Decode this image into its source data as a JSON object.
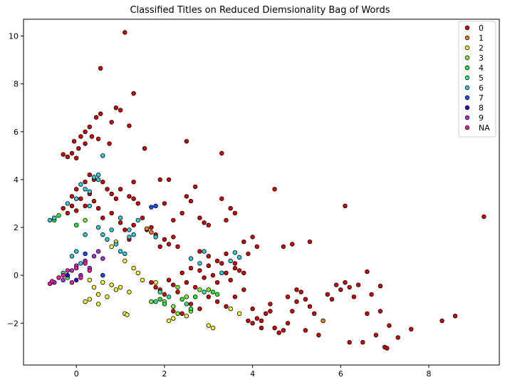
{
  "chart_data": {
    "type": "scatter",
    "title": "Classified Titles on Reduced Diemsionality Bag of Words",
    "xlabel": "",
    "ylabel": "",
    "xlim": [
      -1.2,
      9.6
    ],
    "ylim": [
      -3.75,
      10.7
    ],
    "xticks": [
      0,
      2,
      4,
      6,
      8
    ],
    "yticks": [
      -2,
      0,
      2,
      4,
      6,
      8,
      10
    ],
    "grid": false,
    "legend_position": "top-right",
    "series": [
      {
        "name": "0",
        "color": "#d40000",
        "points": [
          [
            1.1,
            10.15
          ],
          [
            0.55,
            8.65
          ],
          [
            1.3,
            7.6
          ],
          [
            0.9,
            7.0
          ],
          [
            1.0,
            6.9
          ],
          [
            0.55,
            6.75
          ],
          [
            1.2,
            6.25
          ],
          [
            0.45,
            6.6
          ],
          [
            0.3,
            6.2
          ],
          [
            0.2,
            6.0
          ],
          [
            0.1,
            5.8
          ],
          [
            -0.05,
            5.6
          ],
          [
            -0.3,
            5.05
          ],
          [
            -0.2,
            4.95
          ],
          [
            -0.1,
            5.1
          ],
          [
            0.0,
            4.9
          ],
          [
            0.05,
            5.3
          ],
          [
            0.2,
            5.5
          ],
          [
            0.35,
            5.8
          ],
          [
            0.5,
            5.7
          ],
          [
            0.8,
            6.4
          ],
          [
            0.75,
            5.5
          ],
          [
            1.55,
            5.3
          ],
          [
            2.5,
            5.6
          ],
          [
            0.3,
            4.2
          ],
          [
            0.2,
            3.9
          ],
          [
            0.4,
            4.0
          ],
          [
            0.6,
            3.9
          ],
          [
            0.7,
            3.6
          ],
          [
            0.8,
            3.4
          ],
          [
            0.9,
            3.2
          ],
          [
            1.0,
            3.6
          ],
          [
            1.2,
            3.3
          ],
          [
            1.4,
            3.0
          ],
          [
            0.0,
            3.6
          ],
          [
            -0.1,
            3.3
          ],
          [
            0.1,
            3.2
          ],
          [
            0.3,
            3.4
          ],
          [
            -0.3,
            2.8
          ],
          [
            -0.2,
            2.6
          ],
          [
            -0.1,
            2.9
          ],
          [
            0.0,
            2.7
          ],
          [
            0.2,
            2.9
          ],
          [
            0.4,
            3.1
          ],
          [
            0.5,
            2.8
          ],
          [
            0.6,
            2.4
          ],
          [
            0.8,
            2.6
          ],
          [
            1.0,
            2.2
          ],
          [
            1.1,
            1.9
          ],
          [
            1.2,
            1.5
          ],
          [
            1.3,
            2.1
          ],
          [
            1.5,
            2.4
          ],
          [
            1.6,
            1.9
          ],
          [
            1.7,
            2.0
          ],
          [
            1.8,
            1.7
          ],
          [
            1.9,
            1.2
          ],
          [
            2.0,
            1.5
          ],
          [
            2.1,
            1.3
          ],
          [
            2.2,
            1.6
          ],
          [
            2.3,
            1.2
          ],
          [
            2.2,
            2.3
          ],
          [
            2.4,
            2.6
          ],
          [
            2.6,
            3.1
          ],
          [
            2.7,
            3.7
          ],
          [
            2.8,
            2.4
          ],
          [
            3.0,
            2.1
          ],
          [
            3.3,
            3.2
          ],
          [
            3.5,
            2.8
          ],
          [
            3.3,
            5.1
          ],
          [
            1.3,
            3.9
          ],
          [
            1.3,
            3.2
          ],
          [
            1.9,
            4.0
          ],
          [
            2.0,
            3.0
          ],
          [
            2.1,
            4.0
          ],
          [
            2.5,
            3.3
          ],
          [
            3.4,
            2.3
          ],
          [
            3.6,
            2.6
          ],
          [
            2.9,
            2.2
          ],
          [
            2.8,
            1.0
          ],
          [
            3.0,
            0.8
          ],
          [
            3.2,
            0.6
          ],
          [
            3.4,
            0.9
          ],
          [
            3.6,
            0.5
          ],
          [
            3.8,
            1.4
          ],
          [
            3.9,
            0.9
          ],
          [
            4.0,
            1.6
          ],
          [
            4.1,
            1.2
          ],
          [
            4.5,
            3.6
          ],
          [
            4.7,
            1.2
          ],
          [
            4.9,
            1.3
          ],
          [
            5.3,
            1.4
          ],
          [
            6.1,
            2.9
          ],
          [
            9.25,
            2.45
          ],
          [
            1.7,
            -0.3
          ],
          [
            1.8,
            -0.5
          ],
          [
            1.9,
            -0.6
          ],
          [
            2.0,
            -0.8
          ],
          [
            2.1,
            -0.2
          ],
          [
            2.2,
            -0.4
          ],
          [
            2.3,
            -0.7
          ],
          [
            2.4,
            0.1
          ],
          [
            2.5,
            -0.3
          ],
          [
            2.6,
            0.3
          ],
          [
            2.7,
            -0.5
          ],
          [
            2.8,
            0.2
          ],
          [
            2.9,
            -0.1
          ],
          [
            3.0,
            0.4
          ],
          [
            3.1,
            0.0
          ],
          [
            3.2,
            -0.3
          ],
          [
            3.3,
            0.5
          ],
          [
            3.4,
            0.1
          ],
          [
            3.5,
            -0.2
          ],
          [
            3.6,
            0.3
          ],
          [
            3.7,
            0.2
          ],
          [
            3.8,
            0.1
          ],
          [
            2.2,
            -1.5
          ],
          [
            2.4,
            -1.6
          ],
          [
            2.6,
            -1.2
          ],
          [
            2.8,
            -1.4
          ],
          [
            3.0,
            -0.9
          ],
          [
            3.2,
            -1.1
          ],
          [
            3.4,
            -1.3
          ],
          [
            3.6,
            -0.9
          ],
          [
            3.9,
            -1.9
          ],
          [
            4.0,
            -2.0
          ],
          [
            4.1,
            -1.8
          ],
          [
            4.2,
            -1.9
          ],
          [
            4.3,
            -1.6
          ],
          [
            4.4,
            -1.5
          ],
          [
            4.5,
            -2.2
          ],
          [
            4.6,
            -2.4
          ],
          [
            4.7,
            -2.3
          ],
          [
            4.8,
            -2.0
          ],
          [
            4.9,
            -1.5
          ],
          [
            5.0,
            -1.1
          ],
          [
            5.1,
            -0.7
          ],
          [
            5.2,
            -1.0
          ],
          [
            5.3,
            -1.3
          ],
          [
            5.4,
            -1.6
          ],
          [
            5.5,
            -2.5
          ],
          [
            5.6,
            -1.9
          ],
          [
            5.7,
            -0.8
          ],
          [
            5.8,
            -1.0
          ],
          [
            5.9,
            -0.4
          ],
          [
            6.0,
            -0.6
          ],
          [
            6.1,
            -0.3
          ],
          [
            6.2,
            -0.5
          ],
          [
            6.3,
            -0.9
          ],
          [
            6.4,
            -0.4
          ],
          [
            6.5,
            -2.8
          ],
          [
            6.6,
            -1.6
          ],
          [
            6.7,
            -0.8
          ],
          [
            6.8,
            -2.5
          ],
          [
            6.9,
            -1.5
          ],
          [
            7.0,
            -3.0
          ],
          [
            7.05,
            -3.05
          ],
          [
            7.1,
            -2.1
          ],
          [
            7.3,
            -2.6
          ],
          [
            7.6,
            -2.25
          ],
          [
            8.3,
            -1.9
          ],
          [
            8.6,
            -1.7
          ],
          [
            6.9,
            -0.45
          ],
          [
            6.6,
            0.15
          ],
          [
            6.2,
            -2.8
          ],
          [
            5.0,
            -0.6
          ],
          [
            4.8,
            -0.9
          ],
          [
            5.2,
            -2.3
          ],
          [
            4.4,
            -1.2
          ],
          [
            4.2,
            -2.2
          ],
          [
            4.0,
            -1.4
          ],
          [
            3.8,
            -0.6
          ]
        ]
      },
      {
        "name": "1",
        "color": "#ff7f0e",
        "points": [
          [
            1.6,
            1.95
          ],
          [
            5.6,
            -1.9
          ],
          [
            1.7,
            1.8
          ]
        ]
      },
      {
        "name": "2",
        "color": "#ffff33",
        "points": [
          [
            0.3,
            -0.2
          ],
          [
            0.4,
            -0.5
          ],
          [
            0.5,
            -0.8
          ],
          [
            0.6,
            -0.3
          ],
          [
            0.7,
            -0.9
          ],
          [
            0.8,
            -0.4
          ],
          [
            0.9,
            -0.6
          ],
          [
            1.0,
            -0.5
          ],
          [
            1.1,
            0.6
          ],
          [
            1.2,
            -0.7
          ],
          [
            1.3,
            0.3
          ],
          [
            1.4,
            0.1
          ],
          [
            1.5,
            -0.2
          ],
          [
            1.8,
            -0.3
          ],
          [
            2.1,
            -1.9
          ],
          [
            2.2,
            -1.8
          ],
          [
            2.5,
            -1.7
          ],
          [
            3.0,
            -2.1
          ],
          [
            3.1,
            -2.2
          ],
          [
            3.5,
            -1.4
          ],
          [
            3.7,
            -1.6
          ],
          [
            0.2,
            -1.1
          ],
          [
            0.3,
            -1.0
          ],
          [
            0.5,
            -1.2
          ],
          [
            1.1,
            -1.6
          ],
          [
            1.15,
            -1.65
          ],
          [
            0.8,
            1.2
          ],
          [
            0.9,
            1.4
          ]
        ]
      },
      {
        "name": "3",
        "color": "#80ff33",
        "points": [
          [
            1.7,
            -1.1
          ],
          [
            2.2,
            -1.3
          ],
          [
            2.3,
            -1.6
          ],
          [
            2.5,
            -0.9
          ],
          [
            2.6,
            -1.5
          ],
          [
            2.0,
            -1.1
          ],
          [
            2.3,
            -0.5
          ],
          [
            2.8,
            -0.6
          ],
          [
            3.0,
            -0.6
          ],
          [
            -0.5,
            2.4
          ],
          [
            0.2,
            2.3
          ]
        ]
      },
      {
        "name": "4",
        "color": "#1aff33",
        "points": [
          [
            1.9,
            -1.0
          ],
          [
            2.0,
            -1.2
          ],
          [
            2.4,
            -1.0
          ],
          [
            2.6,
            -1.4
          ],
          [
            2.7,
            -0.9
          ],
          [
            3.1,
            -0.7
          ],
          [
            3.2,
            -0.8
          ],
          [
            -0.5,
            2.3
          ],
          [
            -0.4,
            2.5
          ],
          [
            0.0,
            2.1
          ]
        ]
      },
      {
        "name": "5",
        "color": "#1aff99",
        "points": [
          [
            1.8,
            -1.1
          ],
          [
            2.1,
            -0.9
          ],
          [
            2.5,
            -1.2
          ],
          [
            2.9,
            -0.7
          ],
          [
            1.9,
            -0.7
          ],
          [
            -0.3,
            0.1
          ],
          [
            -0.2,
            -0.1
          ]
        ]
      },
      {
        "name": "6",
        "color": "#33ccdd",
        "points": [
          [
            0.1,
            3.8
          ],
          [
            0.3,
            3.5
          ],
          [
            0.5,
            4.0
          ],
          [
            0.6,
            5.0
          ],
          [
            0.4,
            4.1
          ],
          [
            0.5,
            4.2
          ],
          [
            0.2,
            3.6
          ],
          [
            0.0,
            3.2
          ],
          [
            -0.2,
            3.0
          ],
          [
            0.3,
            2.9
          ],
          [
            0.5,
            2.0
          ],
          [
            0.6,
            1.7
          ],
          [
            0.7,
            1.5
          ],
          [
            0.8,
            1.9
          ],
          [
            0.9,
            1.3
          ],
          [
            1.0,
            1.0
          ],
          [
            1.1,
            0.9
          ],
          [
            1.2,
            1.6
          ],
          [
            1.3,
            1.7
          ],
          [
            1.4,
            2.3
          ],
          [
            1.0,
            2.4
          ],
          [
            1.2,
            1.9
          ],
          [
            0.2,
            1.7
          ],
          [
            0.0,
            1.0
          ],
          [
            -0.1,
            0.8
          ],
          [
            0.1,
            0.5
          ],
          [
            -0.6,
            2.3
          ],
          [
            -0.5,
            2.4
          ],
          [
            1.8,
            1.6
          ],
          [
            3.6,
            0.95
          ],
          [
            3.5,
            0.6
          ],
          [
            3.3,
            0.1
          ],
          [
            3.7,
            0.75
          ],
          [
            2.9,
            1.0
          ],
          [
            2.6,
            0.7
          ],
          [
            2.8,
            0.5
          ]
        ]
      },
      {
        "name": "7",
        "color": "#1a4dff",
        "points": [
          [
            1.8,
            2.9
          ],
          [
            1.7,
            2.85
          ],
          [
            0.6,
            0.0
          ],
          [
            0.2,
            0.9
          ]
        ]
      },
      {
        "name": "8",
        "color": "#3300cc",
        "points": [
          [
            -0.2,
            0.0
          ],
          [
            0.0,
            -0.2
          ]
        ]
      },
      {
        "name": "9",
        "color": "#aa33dd",
        "points": [
          [
            -0.5,
            -0.3
          ],
          [
            -0.3,
            -0.2
          ],
          [
            -0.1,
            0.2
          ],
          [
            0.0,
            0.4
          ],
          [
            0.2,
            0.6
          ],
          [
            0.4,
            0.8
          ],
          [
            0.5,
            1.0
          ],
          [
            0.6,
            0.7
          ],
          [
            0.3,
            0.3
          ],
          [
            0.1,
            0.0
          ]
        ]
      },
      {
        "name": "NA",
        "color": "#ff1aaa",
        "points": [
          [
            -0.6,
            -0.35
          ],
          [
            -0.55,
            -0.25
          ],
          [
            -0.4,
            -0.1
          ],
          [
            -0.3,
            0.0
          ],
          [
            -0.2,
            0.2
          ],
          [
            0.0,
            0.3
          ],
          [
            0.2,
            0.5
          ],
          [
            0.3,
            0.2
          ],
          [
            0.1,
            -0.1
          ],
          [
            -0.1,
            -0.3
          ]
        ]
      }
    ]
  }
}
